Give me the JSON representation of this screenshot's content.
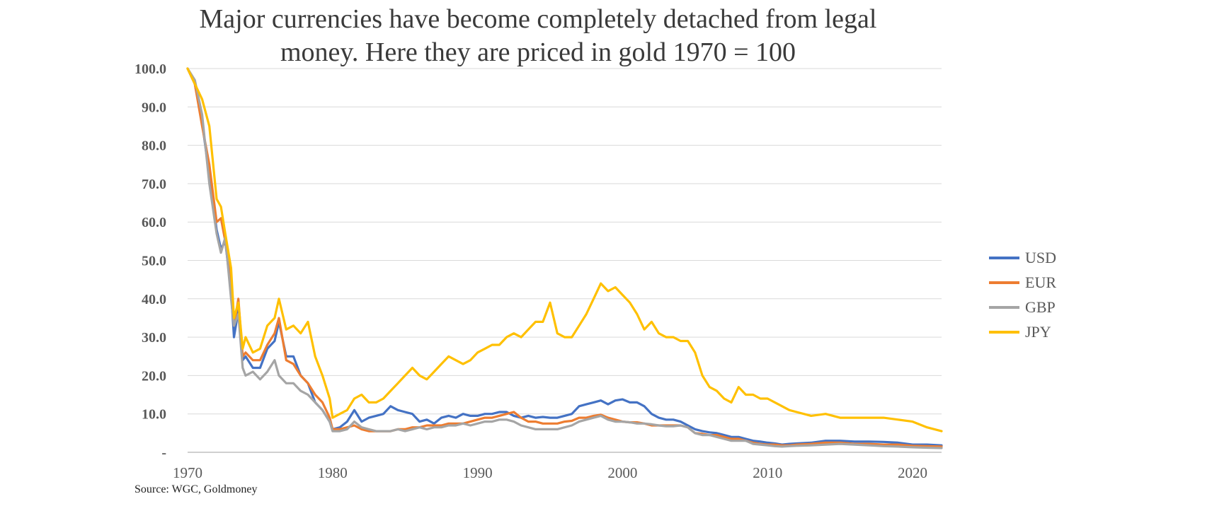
{
  "title_line1": "Major currencies have become completely detached from legal",
  "title_line2": "money. Here they are priced in gold 1970 = 100",
  "source": "Source: WGC, Goldmoney",
  "chart_data": {
    "type": "line",
    "title": "Major currencies have become completely detached from legal money. Here they are priced in gold 1970 = 100",
    "xlabel": "",
    "ylabel": "",
    "xlim": [
      1970,
      2022
    ],
    "ylim": [
      0,
      100
    ],
    "grid": true,
    "legend_position": "right",
    "y_ticks": [
      "-",
      "10.0",
      "20.0",
      "30.0",
      "40.0",
      "50.0",
      "60.0",
      "70.0",
      "80.0",
      "90.0",
      "100.0"
    ],
    "y_tick_values": [
      0,
      10,
      20,
      30,
      40,
      50,
      60,
      70,
      80,
      90,
      100
    ],
    "x_ticks": [
      "1970",
      "1980",
      "1990",
      "2000",
      "2010",
      "2020"
    ],
    "x_tick_values": [
      1970,
      1980,
      1990,
      2000,
      2010,
      2020
    ],
    "series": [
      {
        "name": "USD",
        "color": "#4472C4",
        "x": [
          1970,
          1970.5,
          1971,
          1971.5,
          1972,
          1972.3,
          1972.6,
          1973,
          1973.2,
          1973.5,
          1973.8,
          1974,
          1974.5,
          1975,
          1975.5,
          1976,
          1976.3,
          1976.8,
          1977.3,
          1977.8,
          1978.3,
          1978.8,
          1979.3,
          1979.8,
          1980,
          1980.5,
          1981,
          1981.5,
          1982,
          1982.5,
          1983,
          1983.5,
          1984,
          1984.5,
          1985,
          1985.5,
          1986,
          1986.5,
          1987,
          1987.5,
          1988,
          1988.5,
          1989,
          1989.5,
          1990,
          1990.5,
          1991,
          1991.5,
          1992,
          1992.5,
          1993,
          1993.5,
          1994,
          1994.5,
          1995,
          1995.5,
          1996,
          1996.5,
          1997,
          1997.5,
          1998,
          1998.5,
          1999,
          1999.5,
          2000,
          2000.5,
          2001,
          2001.5,
          2002,
          2002.5,
          2003,
          2003.5,
          2004,
          2004.5,
          2005,
          2005.5,
          2006,
          2006.5,
          2007,
          2007.5,
          2008,
          2008.5,
          2009,
          2009.5,
          2010,
          2010.5,
          2011,
          2011.5,
          2012,
          2013,
          2014,
          2015,
          2016,
          2017,
          2018,
          2019,
          2020,
          2021,
          2022
        ],
        "values": [
          100,
          96,
          86,
          72,
          58,
          53,
          55,
          42,
          30,
          37,
          24,
          25,
          22,
          22,
          27,
          29,
          34,
          25,
          25,
          20,
          18,
          13,
          11,
          8,
          6,
          6.5,
          8,
          11,
          8,
          9,
          9.5,
          10,
          12,
          11,
          10.5,
          10,
          8,
          8.5,
          7.5,
          9,
          9.5,
          9,
          10,
          9.5,
          9.5,
          10,
          10,
          10.5,
          10.5,
          9.5,
          9,
          9.5,
          9,
          9.2,
          9,
          9,
          9.5,
          10,
          12,
          12.5,
          13,
          13.5,
          12.5,
          13.5,
          13.8,
          13,
          13,
          12,
          10,
          9,
          8.5,
          8.5,
          8,
          7,
          6,
          5.5,
          5.2,
          5,
          4.5,
          4,
          4,
          3.5,
          3,
          2.8,
          2.5,
          2.3,
          2,
          2.2,
          2.3,
          2.5,
          3,
          3,
          2.8,
          2.8,
          2.7,
          2.5,
          2,
          2,
          1.8
        ]
      },
      {
        "name": "EUR",
        "color": "#ED7D31",
        "x": [
          1970,
          1970.5,
          1971,
          1971.5,
          1972,
          1972.3,
          1972.6,
          1973,
          1973.2,
          1973.5,
          1973.8,
          1974,
          1974.5,
          1975,
          1975.5,
          1976,
          1976.3,
          1976.8,
          1977.3,
          1977.8,
          1978.3,
          1978.8,
          1979.3,
          1979.8,
          1980,
          1980.5,
          1981,
          1981.5,
          1982,
          1982.5,
          1983,
          1983.5,
          1984,
          1984.5,
          1985,
          1985.5,
          1986,
          1986.5,
          1987,
          1987.5,
          1988,
          1988.5,
          1989,
          1989.5,
          1990,
          1990.5,
          1991,
          1991.5,
          1992,
          1992.5,
          1993,
          1993.5,
          1994,
          1994.5,
          1995,
          1995.5,
          1996,
          1996.5,
          1997,
          1997.5,
          1998,
          1998.5,
          1999,
          1999.5,
          2000,
          2000.5,
          2001,
          2001.5,
          2002,
          2002.5,
          2003,
          2003.5,
          2004,
          2004.5,
          2005,
          2005.5,
          2006,
          2006.5,
          2007,
          2007.5,
          2008,
          2008.5,
          2009,
          2009.5,
          2010,
          2010.5,
          2011,
          2011.5,
          2012,
          2013,
          2014,
          2015,
          2016,
          2017,
          2018,
          2019,
          2020,
          2021,
          2022
        ],
        "values": [
          100,
          96,
          85,
          75,
          60,
          61,
          55,
          44,
          33,
          40,
          25,
          26,
          24,
          24,
          28,
          31,
          35,
          24,
          23,
          20,
          18,
          15,
          13,
          9,
          6,
          6,
          6.5,
          7,
          6,
          5.5,
          5.5,
          5.5,
          5.5,
          6,
          6,
          6.5,
          6.5,
          7,
          7,
          7,
          7.5,
          7.5,
          7.5,
          8,
          8.5,
          9,
          9,
          9.5,
          10,
          10.5,
          9,
          8,
          8,
          7.5,
          7.5,
          7.5,
          8,
          8.2,
          9,
          9,
          9.5,
          9.8,
          9,
          8.5,
          8,
          7.8,
          7.8,
          7.5,
          7,
          7,
          7,
          7,
          7,
          6.5,
          5,
          4.8,
          4.5,
          4.5,
          4,
          3.5,
          3.5,
          3,
          2.5,
          2.2,
          2,
          2,
          1.8,
          1.8,
          2,
          2.2,
          2.5,
          2.5,
          2.2,
          2.2,
          2,
          2,
          1.7,
          1.6,
          1.5
        ]
      },
      {
        "name": "GBP",
        "color": "#A5A5A5",
        "x": [
          1970,
          1970.5,
          1971,
          1971.5,
          1972,
          1972.3,
          1972.6,
          1973,
          1973.2,
          1973.5,
          1973.8,
          1974,
          1974.5,
          1975,
          1975.5,
          1976,
          1976.3,
          1976.8,
          1977.3,
          1977.8,
          1978.3,
          1978.8,
          1979.3,
          1979.8,
          1980,
          1980.5,
          1981,
          1981.5,
          1982,
          1982.5,
          1983,
          1983.5,
          1984,
          1984.5,
          1985,
          1985.5,
          1986,
          1986.5,
          1987,
          1987.5,
          1988,
          1988.5,
          1989,
          1989.5,
          1990,
          1990.5,
          1991,
          1991.5,
          1992,
          1992.5,
          1993,
          1993.5,
          1994,
          1994.5,
          1995,
          1995.5,
          1996,
          1996.5,
          1997,
          1997.5,
          1998,
          1998.5,
          1999,
          1999.5,
          2000,
          2000.5,
          2001,
          2001.5,
          2002,
          2002.5,
          2003,
          2003.5,
          2004,
          2004.5,
          2005,
          2005.5,
          2006,
          2006.5,
          2007,
          2007.5,
          2008,
          2008.5,
          2009,
          2009.5,
          2010,
          2010.5,
          2011,
          2011.5,
          2012,
          2013,
          2014,
          2015,
          2016,
          2017,
          2018,
          2019,
          2020,
          2021,
          2022
        ],
        "values": [
          100,
          97,
          88,
          70,
          57,
          52,
          56,
          40,
          33,
          36,
          22,
          20,
          21,
          19,
          21,
          24,
          20,
          18,
          18,
          16,
          15,
          13,
          11,
          8,
          5.5,
          5.5,
          6,
          8,
          6.5,
          6,
          5.5,
          5.5,
          5.5,
          6,
          5.5,
          6,
          6.5,
          6,
          6.5,
          6.5,
          7,
          7,
          7.5,
          7,
          7.5,
          8,
          8,
          8.5,
          8.5,
          8,
          7,
          6.5,
          6,
          6,
          6,
          6,
          6.5,
          7,
          8,
          8.5,
          9,
          9.5,
          8.5,
          8,
          8,
          7.8,
          7.5,
          7.5,
          7.3,
          7,
          6.8,
          6.8,
          7,
          6.5,
          5,
          4.5,
          4.5,
          4,
          3.5,
          3,
          3,
          3,
          2.2,
          2,
          1.8,
          1.6,
          1.5,
          1.6,
          1.7,
          1.8,
          2,
          2.2,
          2,
          1.8,
          1.6,
          1.5,
          1.3,
          1.2,
          1.1
        ]
      },
      {
        "name": "JPY",
        "color": "#FFC000",
        "x": [
          1970,
          1970.5,
          1971,
          1971.5,
          1972,
          1972.3,
          1972.6,
          1973,
          1973.2,
          1973.5,
          1973.8,
          1974,
          1974.5,
          1975,
          1975.5,
          1976,
          1976.3,
          1976.8,
          1977.3,
          1977.8,
          1978.3,
          1978.8,
          1979.3,
          1979.8,
          1980,
          1980.5,
          1981,
          1981.5,
          1982,
          1982.5,
          1983,
          1983.5,
          1984,
          1984.5,
          1985,
          1985.5,
          1986,
          1986.5,
          1987,
          1987.5,
          1988,
          1988.5,
          1989,
          1989.5,
          1990,
          1990.5,
          1991,
          1991.5,
          1992,
          1992.5,
          1993,
          1993.5,
          1994,
          1994.5,
          1995,
          1995.5,
          1996,
          1996.5,
          1997,
          1997.5,
          1998,
          1998.5,
          1999,
          1999.5,
          2000,
          2000.5,
          2001,
          2001.5,
          2002,
          2002.5,
          2003,
          2003.5,
          2004,
          2004.5,
          2005,
          2005.5,
          2006,
          2006.5,
          2007,
          2007.5,
          2008,
          2008.5,
          2009,
          2009.5,
          2010,
          2010.5,
          2011,
          2011.5,
          2012,
          2013,
          2014,
          2015,
          2016,
          2017,
          2018,
          2019,
          2020,
          2021,
          2022
        ],
        "values": [
          100,
          96,
          92,
          85,
          66,
          64,
          57,
          48,
          35,
          39,
          27,
          30,
          26,
          27,
          33,
          35,
          40,
          32,
          33,
          31,
          34,
          25,
          20,
          14,
          9,
          10,
          11,
          14,
          15,
          13,
          13,
          14,
          16,
          18,
          20,
          22,
          20,
          19,
          21,
          23,
          25,
          24,
          23,
          24,
          26,
          27,
          28,
          28,
          30,
          31,
          30,
          32,
          34,
          34,
          39,
          31,
          30,
          30,
          33,
          36,
          40,
          44,
          42,
          43,
          41,
          39,
          36,
          32,
          34,
          31,
          30,
          30,
          29,
          29,
          26,
          20,
          17,
          16,
          14,
          13,
          17,
          15,
          15,
          14,
          14,
          13,
          12,
          11,
          10.5,
          9.5,
          10,
          9,
          9,
          9,
          9,
          8.5,
          8,
          6.5,
          5.5
        ]
      }
    ]
  }
}
